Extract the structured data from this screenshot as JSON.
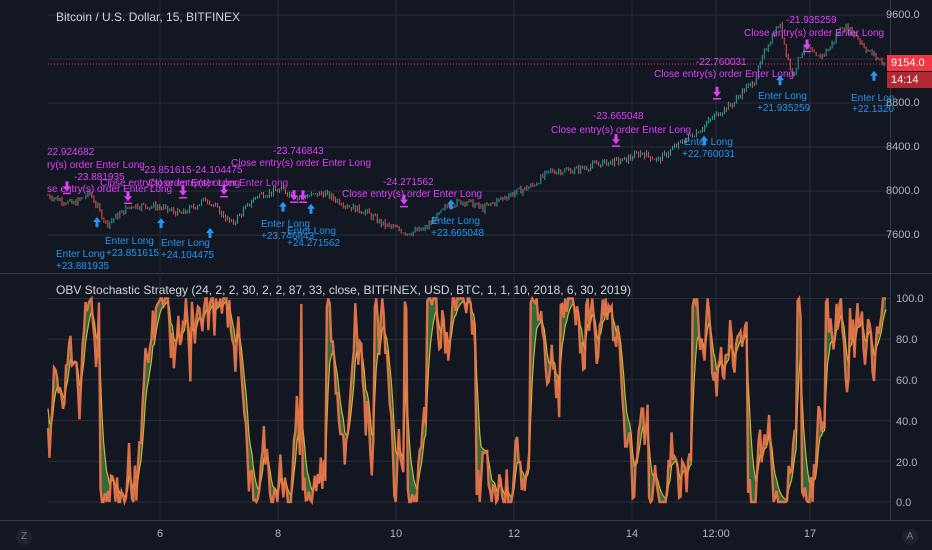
{
  "header": {
    "symbol_title": "Bitcoin / U.S. Dollar, 15, BITFINEX"
  },
  "indicator": {
    "title": "OBV Stochastic Strategy (24, 2, 2, 30, 2, 2, 87, 33, close, BITFINEX, USD, BTC, 1, 1, 10, 2018, 6, 30, 2019)"
  },
  "price_axis": {
    "ticks": [
      "9600.0",
      "8800.0",
      "8400.0",
      "8000.0",
      "7600.0"
    ],
    "last_price": "9154.0",
    "countdown": "14:14"
  },
  "indicator_axis": {
    "ticks": [
      "100.0",
      "80.0",
      "60.0",
      "40.0",
      "20.0",
      "0.0"
    ]
  },
  "time_axis": {
    "ticks": [
      "6",
      "8",
      "10",
      "12",
      "14",
      "12:00",
      "17"
    ]
  },
  "controls": {
    "zoom_button": "Z",
    "auto_button": "A"
  },
  "colors": {
    "background": "#131722",
    "grid": "#2a2e39",
    "candle_up": "#26a69a",
    "candle_down": "#ef5350",
    "strategy_purple": "#e040fb",
    "strategy_blue": "#2196f3",
    "stoch_k": "#f0784b",
    "stoch_d": "#cdb63a",
    "stoch_fill": "#4caf50",
    "badge_red": "#f23645"
  },
  "strategy_labels": [
    {
      "text": "22.924682",
      "color": "purple"
    },
    {
      "text": "ry(s) order Enter Long",
      "color": "purple"
    },
    {
      "text": "-23.881935",
      "color": "purple"
    },
    {
      "text": "se entry(s) order Enter Long",
      "color": "purple"
    },
    {
      "text": "Enter Long",
      "color": "blue"
    },
    {
      "text": "+23.881935",
      "color": "blue"
    },
    {
      "text": "-23.851615",
      "color": "purple"
    },
    {
      "text": "-24.104475",
      "color": "purple"
    },
    {
      "text": "Close entry(s) order Enter Long",
      "color": "purple"
    },
    {
      "text": "Close entry(s) order Enter Long",
      "color": "purple"
    },
    {
      "text": "Enter Long",
      "color": "blue"
    },
    {
      "text": "+23.851615",
      "color": "blue"
    },
    {
      "text": "Enter Long",
      "color": "blue"
    },
    {
      "text": "+24.104475",
      "color": "blue"
    },
    {
      "text": "-23.746843",
      "color": "purple"
    },
    {
      "text": "Close entry(s) order Enter Long",
      "color": "purple"
    },
    {
      "text": "Enter Long",
      "color": "blue"
    },
    {
      "text": "+23.746843",
      "color": "blue"
    },
    {
      "text": "Enter Long",
      "color": "blue"
    },
    {
      "text": "+24.271562",
      "color": "blue"
    },
    {
      "text": "-24.271562",
      "color": "purple"
    },
    {
      "text": "Close entry(s) order Enter Long",
      "color": "purple"
    },
    {
      "text": "Enter Long",
      "color": "blue"
    },
    {
      "text": "+23.665048",
      "color": "blue"
    },
    {
      "text": "-23.665048",
      "color": "purple"
    },
    {
      "text": "Close entry(s) order Enter Long",
      "color": "purple"
    },
    {
      "text": "Enter Long",
      "color": "blue"
    },
    {
      "text": "+22.760031",
      "color": "blue"
    },
    {
      "text": "-22.760031",
      "color": "purple"
    },
    {
      "text": "Close entry(s) order Enter Long",
      "color": "purple"
    },
    {
      "text": "Enter Long",
      "color": "blue"
    },
    {
      "text": "+21.935259",
      "color": "blue"
    },
    {
      "text": "-21.935259",
      "color": "purple"
    },
    {
      "text": "Close entry(s) order Enter Long",
      "color": "purple"
    },
    {
      "text": "Enter Lon",
      "color": "blue"
    },
    {
      "text": "+22.1320",
      "color": "blue"
    }
  ],
  "signals": [
    {
      "type": "close",
      "price": 7960
    },
    {
      "type": "enter",
      "price": 7800
    },
    {
      "type": "close",
      "price": 7870
    },
    {
      "type": "enter",
      "price": 7790
    },
    {
      "type": "close",
      "price": 7920
    },
    {
      "type": "enter",
      "price": 7700
    },
    {
      "type": "close",
      "price": 7930
    },
    {
      "type": "close",
      "price": 7880
    },
    {
      "type": "enter",
      "price": 7940
    },
    {
      "type": "close",
      "price": 7880
    },
    {
      "type": "enter",
      "price": 7920
    },
    {
      "type": "close",
      "price": 7840
    },
    {
      "type": "enter",
      "price": 7960
    },
    {
      "type": "close",
      "price": 8390
    },
    {
      "type": "enter",
      "price": 8540
    },
    {
      "type": "close",
      "price": 8820
    },
    {
      "type": "enter",
      "price": 9090
    },
    {
      "type": "close",
      "price": 9250
    },
    {
      "type": "enter",
      "price": 9130
    }
  ]
}
